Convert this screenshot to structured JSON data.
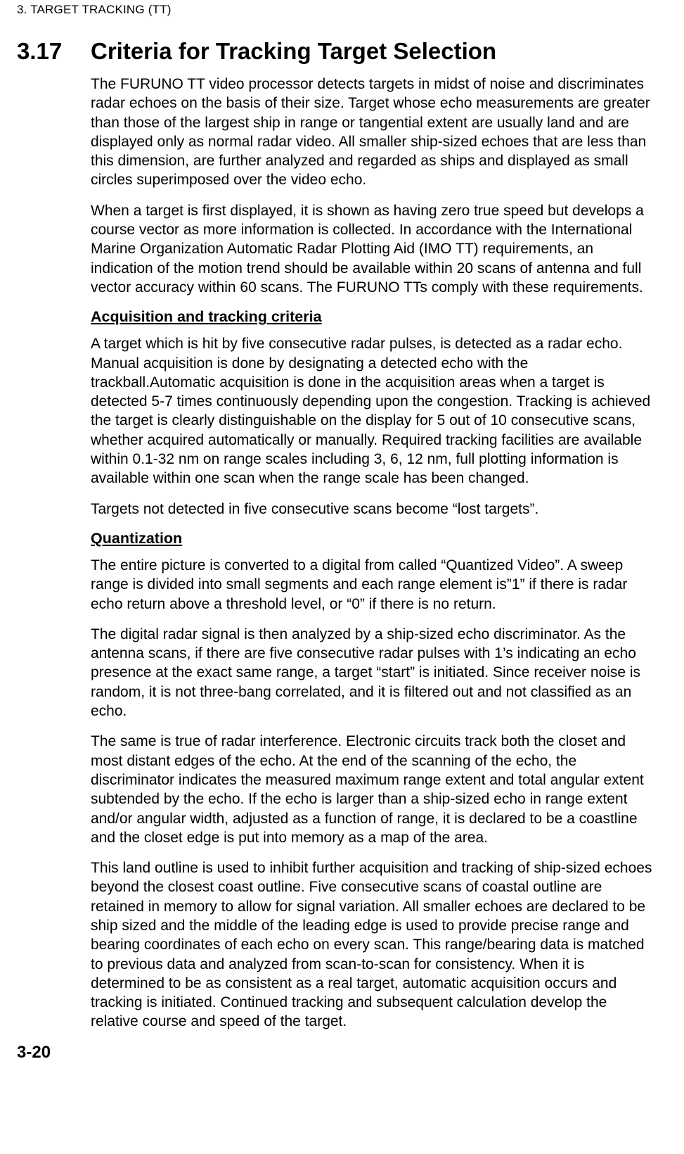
{
  "header": "3.  TARGET TRACKING (TT)",
  "section_number": "3.17",
  "section_title": "Criteria for Tracking Target Selection",
  "p1": "The FURUNO TT video processor detects targets in midst of noise and discriminates radar echoes on the basis of their size. Target whose echo measurements are greater than those of the largest ship in range or tangential extent are usually land and are displayed only as normal radar video. All smaller ship-sized echoes that are less than this dimension, are further analyzed and regarded as ships and displayed as small circles superimposed over the video echo.",
  "p2": "When a target is first displayed, it is shown as having zero true speed but develops a course vector as more information is collected. In accordance with the International Marine Organization Automatic Radar Plotting Aid (IMO TT) requirements, an indication of the motion trend should be available within 20 scans of antenna and full vector accuracy within 60 scans. The FURUNO TTs comply with these requirements.",
  "sub1": "Acquisition and tracking criteria",
  "p3": "A target which is hit by five consecutive radar pulses, is detected as a radar echo. Manual acquisition is done by designating a detected echo with the trackball.Automatic acquisition is done in the acquisition areas when a target is detected 5-7 times continuously depending upon the congestion. Tracking is achieved the target is clearly distinguishable on the display for 5 out of 10 consecutive scans, whether acquired automatically or manually. Required tracking facilities are available within 0.1-32 nm on range scales including 3, 6, 12 nm, full plotting information is available within one scan when the range scale has been changed.",
  "p4": "Targets not detected in five consecutive scans become “lost targets”.",
  "sub2": "Quantization",
  "p5": "The entire picture is converted to a digital from called “Quantized Video”. A sweep range is divided into small segments and each range element is”1” if there is radar echo return above a threshold level, or “0” if there is no return.",
  "p6": "The digital radar signal is then analyzed by a ship-sized echo discriminator. As the antenna scans, if there are five consecutive radar pulses with 1’s indicating an echo presence at the exact same range, a target “start” is initiated. Since receiver noise is random, it is not three-bang correlated, and it is filtered out and not classified as an echo.",
  "p7": "The same is true of radar interference. Electronic circuits track both the closet and most distant edges of the echo. At the end of the scanning of the echo, the discriminator indicates the measured maximum range extent and total angular extent subtended by the echo. If the echo is larger than a ship-sized echo in range extent and/or angular width, adjusted as a function of range, it is declared to be a coastline and the closet edge is put into memory as a map of the area.",
  "p8": "This land outline is used to inhibit further acquisition and tracking of ship-sized echoes beyond the closest coast outline. Five consecutive scans of coastal outline are retained in memory to allow for signal variation. All smaller echoes are declared to be ship sized and the middle of the leading edge is used to provide precise range and bearing coordinates of each echo on every scan. This range/bearing data is matched to previous data and analyzed from scan-to-scan for consistency. When it is determined to be as consistent as a real target, automatic acquisition occurs and tracking is initiated. Continued tracking and subsequent calculation develop the relative course and speed of the target.",
  "page_number": "3-20"
}
